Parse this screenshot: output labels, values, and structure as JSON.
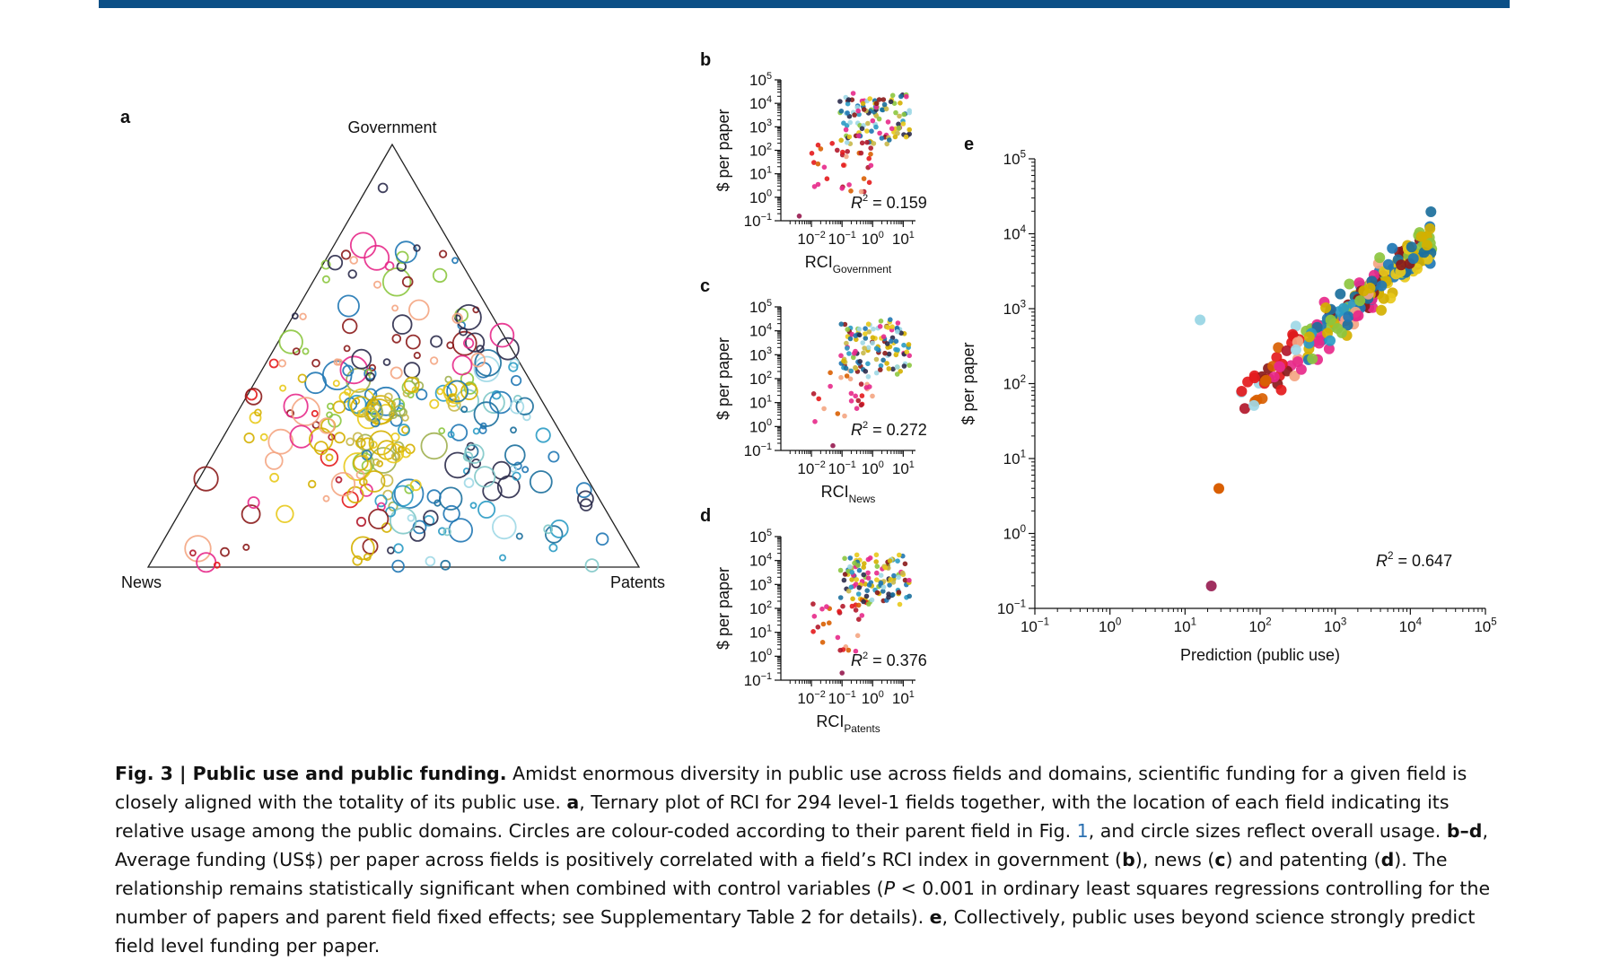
{
  "figure": {
    "top_bar_color": "#0b4f86",
    "panel_letters": [
      "a",
      "b",
      "c",
      "d",
      "e"
    ]
  },
  "panel_a": {
    "vertices": {
      "top": "Government",
      "left": "News",
      "right": "Patents"
    },
    "n_fields": 294
  },
  "chart_data": [
    {
      "panel": "b",
      "type": "scatter",
      "xlabel": "RCI",
      "xlabel_sub": "Government",
      "ylabel": "$ per paper",
      "annotation": {
        "text": "R",
        "sup": "2",
        "rest": " = 0.159"
      },
      "x_log_range": [
        -3,
        1.4
      ],
      "y_log_range": [
        -1,
        5
      ],
      "x_ticks": [
        "10−2",
        "10−1",
        "100",
        "101"
      ],
      "y_ticks": [
        "10−1",
        "100",
        "101",
        "102",
        "103",
        "104",
        "105"
      ],
      "r2": 0.159
    },
    {
      "panel": "c",
      "type": "scatter",
      "xlabel": "RCI",
      "xlabel_sub": "News",
      "ylabel": "$ per paper",
      "annotation": {
        "text": "R",
        "sup": "2",
        "rest": " = 0.272"
      },
      "x_log_range": [
        -3,
        1.4
      ],
      "y_log_range": [
        -1,
        5
      ],
      "x_ticks": [
        "10−2",
        "10−1",
        "100",
        "101"
      ],
      "y_ticks": [
        "10−1",
        "100",
        "101",
        "102",
        "103",
        "104",
        "105"
      ],
      "r2": 0.272
    },
    {
      "panel": "d",
      "type": "scatter",
      "xlabel": "RCI",
      "xlabel_sub": "Patents",
      "ylabel": "$ per paper",
      "annotation": {
        "text": "R",
        "sup": "2",
        "rest": " = 0.376"
      },
      "x_log_range": [
        -3,
        1.4
      ],
      "y_log_range": [
        -1,
        5
      ],
      "x_ticks": [
        "10−2",
        "10−1",
        "100",
        "101"
      ],
      "y_ticks": [
        "10−1",
        "100",
        "101",
        "102",
        "103",
        "104",
        "105"
      ],
      "r2": 0.376
    },
    {
      "panel": "e",
      "type": "scatter",
      "xlabel": "Prediction (public use)",
      "ylabel": "$ per paper",
      "annotation": {
        "text": "R",
        "sup": "2",
        "rest": " = 0.647"
      },
      "x_log_range": [
        -1,
        5
      ],
      "y_log_range": [
        -1,
        5
      ],
      "x_ticks": [
        "10−1",
        "100",
        "101",
        "102",
        "103",
        "104",
        "105"
      ],
      "y_ticks": [
        "10−1",
        "100",
        "101",
        "102",
        "103",
        "104",
        "105"
      ],
      "r2": 0.647
    }
  ],
  "palette": [
    "#d4b000",
    "#e8c91a",
    "#c8b84a",
    "#1f77b4",
    "#1b6f9c",
    "#2a9bc4",
    "#9fd8e6",
    "#7fc8c8",
    "#8cc63f",
    "#a0b050",
    "#8b1a1a",
    "#b2182b",
    "#e41a1c",
    "#f4a582",
    "#e7298a",
    "#d95f02",
    "#999999",
    "#2b2b4b"
  ],
  "caption": {
    "fig_label": "Fig. 3 | Public use and public funding.",
    "part1": " Amidst enormous diversity in public use across fields and domains, scientific funding for a given field is closely aligned with the totality of its public use. ",
    "a": "a",
    "part2": ", Ternary plot of RCI for 294 level-1 fields together, with the location of each field indicating its relative usage among the public domains. Circles are colour-coded according to their parent field in Fig. ",
    "fig_ref": "1",
    "part3": ", and circle sizes reflect overall usage. ",
    "bd": "b–d",
    "part4": ", Average funding (US$) per paper across fields is positively correlated with a field’s RCI index in government (",
    "b": "b",
    "part5": "), news (",
    "c": "c",
    "part6": ") and patenting (",
    "d": "d",
    "part7": "). The relationship remains statistically significant when combined with control variables (",
    "P": "P",
    "part8": " < 0.001 in ordinary least squares regressions controlling for the number of papers and parent field fixed effects; see Supplementary Table 2 for details). ",
    "e": "e",
    "part9": ", Collectively, public uses beyond science strongly predict field level funding per paper."
  }
}
